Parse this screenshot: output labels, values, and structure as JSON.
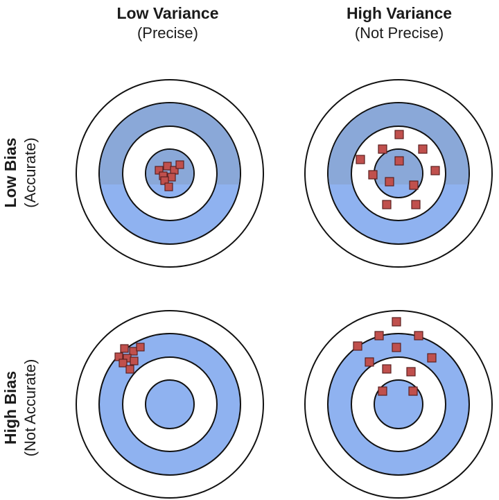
{
  "columns": [
    {
      "title": "Low Variance",
      "subtitle": "(Precise)"
    },
    {
      "title": "High Variance",
      "subtitle": "(Not Precise)"
    }
  ],
  "rows": [
    {
      "title": "Low Bias",
      "subtitle": "(Accurate)"
    },
    {
      "title": "High Bias",
      "subtitle": "(Not Accurate)"
    }
  ],
  "colors": {
    "ring_blue": "#8fb2f0",
    "ring_blue_dark": "#8aa8d8",
    "ring_white": "#ffffff",
    "ring_stroke": "#111111",
    "hit_fill": "#c0504d",
    "hit_stroke": "#5a2020"
  }
}
